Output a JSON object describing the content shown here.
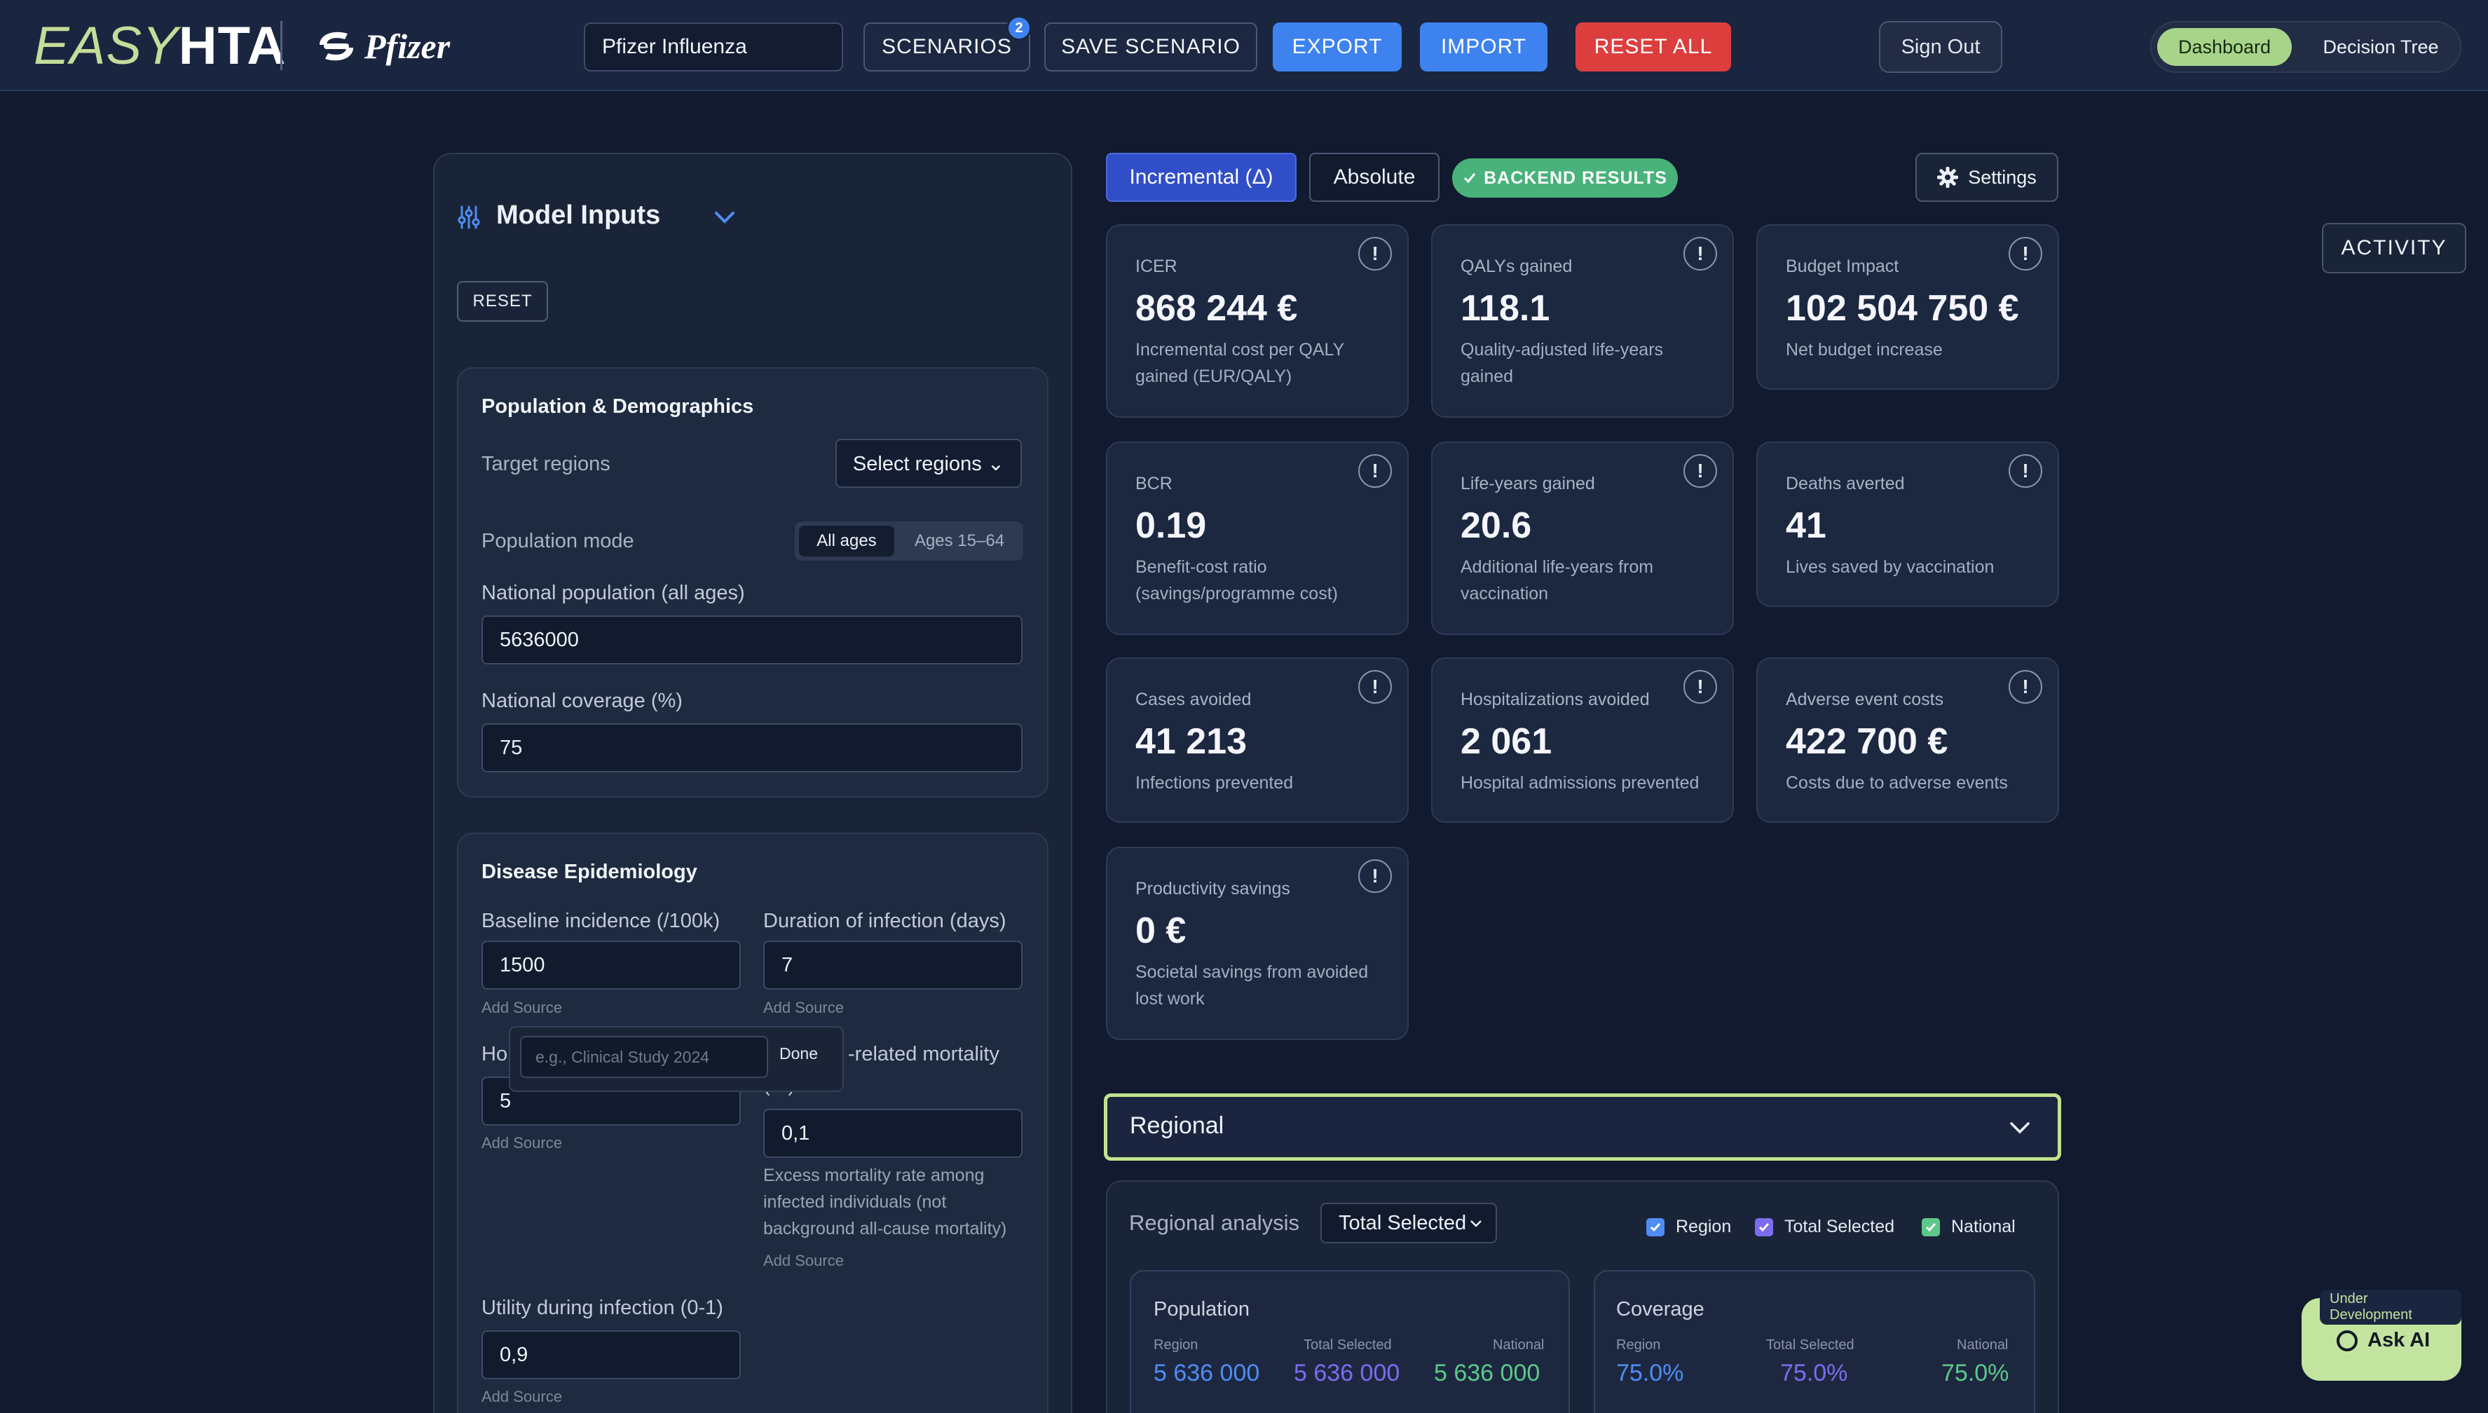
{
  "header": {
    "logo_easy": "EASY",
    "logo_hta": "HTA",
    "partner": "Pfizer",
    "scenario_name": "Pfizer Influenza",
    "scenarios_label": "SCENARIOS",
    "scenarios_count": "2",
    "save_label": "SAVE SCENARIO",
    "export_label": "EXPORT",
    "import_label": "IMPORT",
    "reset_all_label": "RESET ALL",
    "sign_out_label": "Sign Out",
    "view_toggle": {
      "active": "Dashboard",
      "inactive": "Decision Tree"
    }
  },
  "inputs_panel": {
    "title": "Model Inputs",
    "reset_label": "RESET",
    "population": {
      "title": "Population & Demographics",
      "target_regions_label": "Target regions",
      "select_regions": "Select regions ⌄",
      "population_mode_label": "Population mode",
      "mode_options": [
        "All ages",
        "Ages 15–64"
      ],
      "mode_selected": "All ages",
      "national_population_label": "National population (all ages)",
      "national_population_value": "5636000",
      "national_coverage_label": "National coverage (%)",
      "national_coverage_value": "75"
    },
    "epidemiology": {
      "title": "Disease Epidemiology",
      "incidence_label": "Baseline incidence (/100k)",
      "incidence_value": "1500",
      "duration_label": "Duration of infection (days)",
      "duration_value": "7",
      "add_source": "Add Source",
      "hosp_label_partial": "Ho",
      "hosp_value": "5",
      "mortality_label_partial": "-related mortality",
      "mortality_label_partial2": "(%)",
      "mortality_value": "0,1",
      "mortality_note": "Excess mortality rate among infected individuals (not background all-cause mortality)",
      "utility_label": "Utility during infection (0-1)",
      "utility_value": "0,9",
      "source_placeholder": "e.g., Clinical Study 2024",
      "done_label": "Done"
    }
  },
  "results": {
    "tabs": [
      "Incremental (Δ)",
      "Absolute"
    ],
    "backend_badge": "BACKEND RESULTS",
    "settings_label": "Settings",
    "activity_label": "ACTIVITY",
    "metrics": [
      {
        "label": "ICER",
        "value": "868 244 €",
        "desc": "Incremental cost per QALY gained (EUR/QALY)"
      },
      {
        "label": "QALYs gained",
        "value": "118.1",
        "desc": "Quality-adjusted life-years gained"
      },
      {
        "label": "Budget Impact",
        "value": "102 504 750 €",
        "desc": "Net budget increase"
      },
      {
        "label": "BCR",
        "value": "0.19",
        "desc": "Benefit-cost ratio (savings/programme cost)"
      },
      {
        "label": "Life-years gained",
        "value": "20.6",
        "desc": "Additional life-years from vaccination"
      },
      {
        "label": "Deaths averted",
        "value": "41",
        "desc": "Lives saved by vaccination"
      },
      {
        "label": "Cases avoided",
        "value": "41 213",
        "desc": "Infections prevented"
      },
      {
        "label": "Hospitalizations avoided",
        "value": "2 061",
        "desc": "Hospital admissions prevented"
      },
      {
        "label": "Adverse event costs",
        "value": "422 700 €",
        "desc": "Costs due to adverse events"
      },
      {
        "label": "Productivity savings",
        "value": "0 €",
        "desc": "Societal savings from avoided lost work"
      }
    ],
    "info_icon_text": "!",
    "regional_dropdown": "Regional",
    "regional": {
      "title": "Regional analysis",
      "select_value": "Total Selected",
      "checks": [
        "Region",
        "Total Selected",
        "National"
      ],
      "population": {
        "title": "Population",
        "labels": [
          "Region",
          "Total Selected",
          "National"
        ],
        "values": [
          "5 636 000",
          "5 636 000",
          "5 636 000"
        ]
      },
      "coverage": {
        "title": "Coverage",
        "labels": [
          "Region",
          "Total Selected",
          "National"
        ],
        "values": [
          "75.0%",
          "75.0%",
          "75.0%"
        ]
      }
    }
  },
  "ask_ai": {
    "badge": "Under Development",
    "label": "Ask AI"
  },
  "colors": {
    "region": "#4e8df5",
    "total_selected": "#7b6cf0",
    "national": "#5cc98a",
    "accent_green": "#c1e28e"
  }
}
